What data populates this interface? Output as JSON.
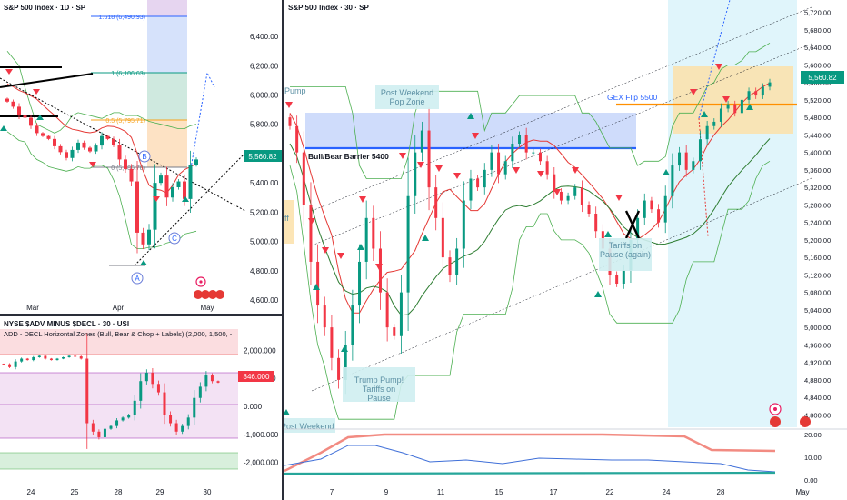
{
  "top_left": {
    "title": "S&P 500 Index · 1D · SP",
    "last_price": "5,560.82",
    "fib_labels": [
      "1.618 (6,490.93)",
      "1 (6,106.63)",
      "0.5 (5,795.71)",
      "0 (5,486.78)"
    ],
    "wave_labels": [
      "B",
      "C",
      "A"
    ],
    "month_labels": [
      "Mar",
      "Apr",
      "May"
    ]
  },
  "bottom_left": {
    "title": "NYSE $ADV MINUS $DECL · 30 · USI",
    "indicator": "ADD - DECL Horizontal Zones (Bull, Bear & Chop + Labels) (2,000, 1,500, -",
    "last_value": "846.000",
    "day_labels": [
      "24",
      "25",
      "28",
      "29",
      "30"
    ]
  },
  "right": {
    "title": "S&P 500 Index · 30 · SP",
    "last_price": "5,560.82",
    "annotations": [
      "Post Weekend Pop Zone",
      "Bull/Bear Barrier 5400",
      "GEX Flip 5500",
      "Tariffs on Pause (again)",
      "Trump Pump! Tariffs on Pause",
      "Post Weekend",
      "Pump",
      "ff"
    ],
    "x_labels": [
      "7",
      "9",
      "11",
      "15",
      "17",
      "22",
      "24",
      "28",
      "May"
    ],
    "oscillator_labels": [
      "20.00",
      "10.00",
      "0.00"
    ]
  },
  "chart_data": [
    {
      "type": "line",
      "title": "S&P 500 Index · 1D · SP",
      "y_ticks": [
        6400,
        6200,
        6000,
        5800,
        5600,
        5400,
        5200,
        5000,
        4800,
        4600
      ],
      "ylim": [
        4600,
        6500
      ],
      "close_series": [
        5955,
        5920,
        5860,
        5845,
        5790,
        5740,
        5720,
        5700,
        5650,
        5610,
        5570,
        5625,
        5675,
        5640,
        5615,
        5655,
        5720,
        5700,
        5660,
        5560,
        5495,
        5410,
        5060,
        4980,
        5080,
        5400,
        5450,
        5300,
        5370,
        5410,
        5290,
        5525,
        5560
      ],
      "series": [
        {
          "name": "Upper band",
          "values": [
            6300,
            6250,
            6200,
            6050,
            5920,
            5800,
            5780,
            5760,
            5740,
            5760,
            5800,
            5860,
            5880,
            5870,
            5860,
            5850,
            5840,
            5860,
            5880,
            5880,
            5860,
            5860,
            5860,
            5840,
            5820,
            5810,
            5800,
            5790,
            5780,
            5770,
            5770,
            5790,
            5800
          ]
        },
        {
          "name": "Lower band",
          "values": [
            5750,
            5720,
            5690,
            5680,
            5600,
            5560,
            5540,
            5510,
            5500,
            5490,
            5480,
            5490,
            5510,
            5500,
            5500,
            5520,
            5520,
            5500,
            5420,
            5310,
            5150,
            4980,
            4950,
            4950,
            4960,
            4960,
            4970,
            4990,
            5000,
            5010,
            5050,
            5060,
            5070
          ]
        }
      ]
    },
    {
      "type": "bar",
      "title": "NYSE $ADV MINUS $DECL · 30 · USI",
      "y_ticks": [
        2000,
        1000,
        0,
        -1000,
        -2000
      ],
      "ylim": [
        -2300,
        2300
      ],
      "zones": [
        {
          "name": "Bull",
          "from": 1500,
          "to": 2000
        },
        {
          "name": "Chop",
          "from": -1000,
          "to": 1000
        },
        {
          "name": "Bear",
          "from": -2000,
          "to": -1500
        }
      ],
      "last_value": 846
    },
    {
      "type": "line",
      "title": "S&P 500 Index · 30 · SP",
      "y_ticks": [
        5720,
        5680,
        5640,
        5600,
        5560,
        5520,
        5480,
        5440,
        5400,
        5360,
        5320,
        5280,
        5240,
        5200,
        5160,
        5120,
        5080,
        5040,
        5000,
        4960,
        4920,
        4880,
        4840,
        4800
      ],
      "ylim": [
        4780,
        5740
      ],
      "levels": [
        {
          "name": "Bull/Bear Barrier 5400",
          "value": 5400
        },
        {
          "name": "GEX Flip 5500",
          "value": 5500
        }
      ],
      "close_series": [
        5460,
        5400,
        5280,
        5150,
        5050,
        5000,
        4930,
        4880,
        4960,
        5050,
        5150,
        5250,
        5180,
        5080,
        5000,
        4980,
        5080,
        5300,
        5400,
        5450,
        5320,
        5250,
        5160,
        5120,
        5180,
        5290,
        5340,
        5320,
        5360,
        5400,
        5350,
        5380,
        5420,
        5440,
        5400,
        5400,
        5380,
        5350,
        5310,
        5290,
        5300,
        5320,
        5280,
        5260,
        5220,
        5180,
        5120,
        5100,
        5130,
        5200,
        5250,
        5290,
        5270,
        5240,
        5300,
        5370,
        5400,
        5360,
        5380,
        5430,
        5460,
        5470,
        5500,
        5510,
        5490,
        5520,
        5540,
        5530,
        5550,
        5560
      ]
    }
  ]
}
